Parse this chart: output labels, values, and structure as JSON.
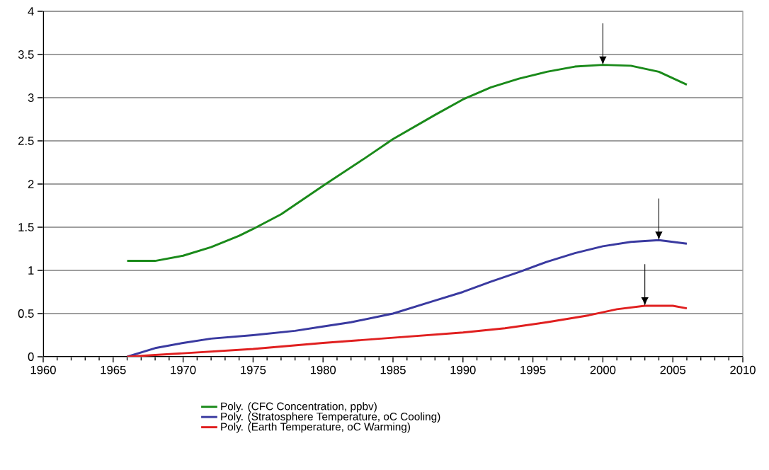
{
  "chart_data": {
    "type": "line",
    "xlim": [
      1960,
      2010
    ],
    "ylim": [
      0,
      4
    ],
    "xticks": [
      1960,
      1965,
      1970,
      1975,
      1980,
      1985,
      1990,
      1995,
      2000,
      2005,
      2010
    ],
    "yticks": [
      0,
      {
        "value": 0.5,
        "label": "0.5"
      },
      1,
      {
        "value": 1.5,
        "label": "1.5"
      },
      2,
      {
        "value": 2.5,
        "label": "2.5"
      },
      3,
      {
        "value": 3.5,
        "label": "3.5"
      },
      4
    ],
    "grid": "y",
    "legend": "bottom",
    "marker": "none",
    "line_style": "solid",
    "series": [
      {
        "name": "Poly. (CFC Concentration, ppbv)",
        "color": "#1a8a1a",
        "x": [
          1966,
          1968,
          1970,
          1972,
          1974,
          1975,
          1977,
          1980,
          1983,
          1985,
          1988,
          1990,
          1992,
          1994,
          1996,
          1998,
          2000,
          2002,
          2004,
          2006
        ],
        "values": [
          1.11,
          1.11,
          1.17,
          1.27,
          1.4,
          1.48,
          1.65,
          1.98,
          2.3,
          2.52,
          2.8,
          2.98,
          3.12,
          3.22,
          3.3,
          3.36,
          3.38,
          3.37,
          3.3,
          3.15
        ]
      },
      {
        "name": "Poly. (Stratosphere Temperature, oC Cooling)",
        "color": "#3a3aa0",
        "x": [
          1966,
          1968,
          1970,
          1972,
          1975,
          1978,
          1980,
          1982,
          1985,
          1988,
          1990,
          1992,
          1994,
          1996,
          1998,
          2000,
          2002,
          2004,
          2006
        ],
        "values": [
          0,
          0.1,
          0.16,
          0.21,
          0.25,
          0.3,
          0.35,
          0.4,
          0.5,
          0.65,
          0.75,
          0.87,
          0.98,
          1.1,
          1.2,
          1.28,
          1.33,
          1.35,
          1.31
        ]
      },
      {
        "name": "Poly. (Earth Temperature, oC Warming)",
        "color": "#e02020",
        "x": [
          1966,
          1968,
          1970,
          1975,
          1980,
          1985,
          1990,
          1993,
          1996,
          1999,
          2001,
          2003,
          2005,
          2006
        ],
        "values": [
          0,
          0.02,
          0.04,
          0.09,
          0.16,
          0.22,
          0.28,
          0.33,
          0.4,
          0.48,
          0.55,
          0.59,
          0.59,
          0.56
        ]
      }
    ]
  }
}
